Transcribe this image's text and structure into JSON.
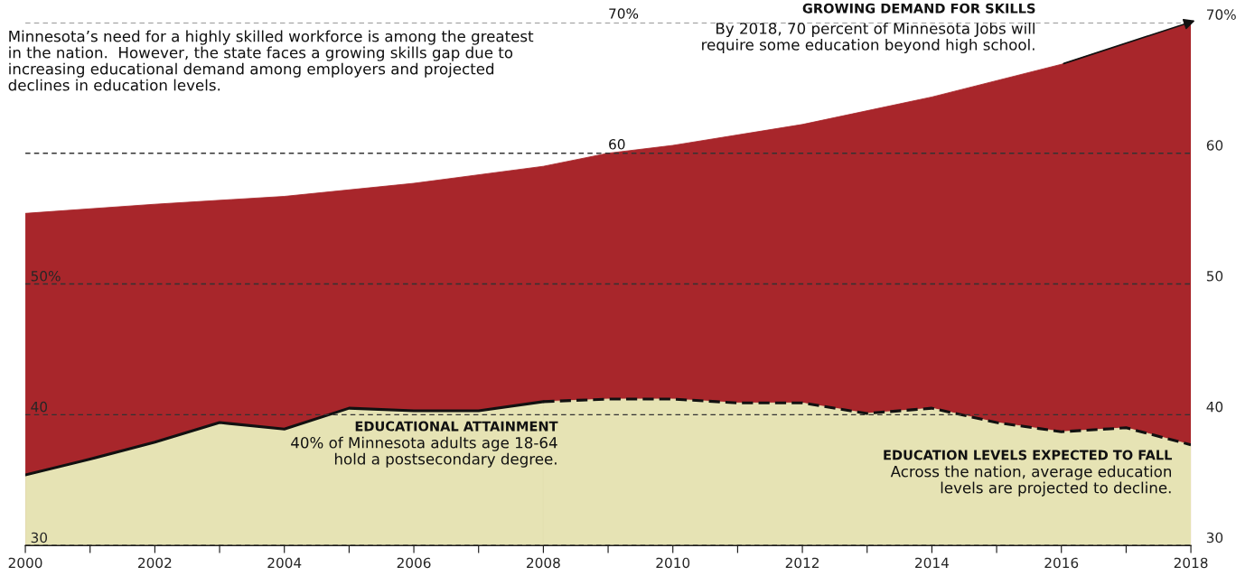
{
  "chart_data": {
    "type": "area",
    "xlim": [
      2000,
      2018
    ],
    "xticks": [
      2000,
      {
        "value": 2001,
        "label": null
      },
      2002,
      {
        "value": 2003,
        "label": null
      },
      2004,
      {
        "value": 2005,
        "label": null
      },
      2006,
      {
        "value": 2007,
        "label": null
      },
      2008,
      {
        "value": 2009,
        "label": null
      },
      2010,
      {
        "value": 2011,
        "label": null
      },
      2012,
      {
        "value": 2013,
        "label": null
      },
      2014,
      {
        "value": 2015,
        "label": null
      },
      2016,
      {
        "value": 2017,
        "label": null
      },
      2018
    ],
    "ylim": [
      30,
      70
    ],
    "yticks": [
      30,
      40,
      {
        "value": 50,
        "label": "50%"
      },
      {
        "value": 60,
        "label": null
      },
      {
        "value": 70,
        "label": null
      }
    ],
    "y2lim": [
      30,
      70
    ],
    "y2ticks": [
      30,
      40,
      50,
      60,
      {
        "value": 70,
        "label": "70%"
      }
    ],
    "grid": "y",
    "legend": false,
    "series": [
      {
        "color": "#a8262b",
        "x": [
          2000,
          2002,
          2004,
          2006,
          2008,
          2009,
          2010,
          2012,
          2014,
          2016,
          2018
        ],
        "values": [
          55.4,
          56.1,
          56.7,
          57.7,
          59.0,
          60.0,
          60.6,
          62.2,
          64.3,
          66.8,
          70
        ]
      },
      {
        "color": "#e6e3b4",
        "line_style": "solid",
        "x": [
          2000,
          2001,
          2002,
          2003,
          2004,
          2005,
          2006,
          2007,
          2008
        ],
        "values": [
          35.4,
          36.6,
          37.9,
          39.4,
          38.9,
          40.5,
          40.3,
          40.3,
          41.0
        ]
      },
      {
        "color": "#e6e3b4",
        "line_style": "dashed",
        "x": [
          2008,
          2009,
          2010,
          2011,
          2012,
          2013,
          2014,
          2015,
          2016,
          2017,
          2018
        ],
        "values": [
          41.0,
          41.2,
          41.2,
          40.9,
          40.9,
          40.1,
          40.5,
          39.4,
          38.7,
          39.0,
          37.7
        ]
      }
    ],
    "annotations": [
      "Minnesota’s need for a highly skilled workforce is among the greatest\nin the nation.  However, the state faces a growing skills gap due to\nincreasing educational demand among employers and projected\ndeclines in education levels.",
      "GROWING DEMAND FOR SKILLS",
      "By 2018, 70 percent of Minnesota Jobs will\nrequire some education beyond high school.",
      "EDUCATIONAL ATTAINMENT",
      "40% of Minnesota adults age 18-64\nhold a postsecondary degree.",
      "EDUCATION LEVELS EXPECTED TO FALL",
      "Across the nation, average education\nlevels are projected to decline.",
      "60",
      "70%"
    ]
  }
}
